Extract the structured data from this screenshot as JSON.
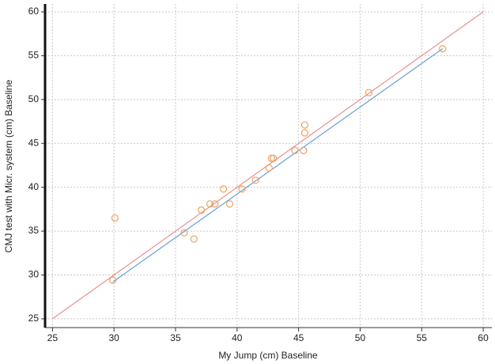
{
  "chart_data": {
    "type": "scatter",
    "xlabel": "My Jump (cm) Baseline",
    "ylabel": "CMJ test with Micr. system (cm) Baseline",
    "xlim": [
      24.4,
      60.7
    ],
    "ylim": [
      24,
      60.9
    ],
    "xticks": [
      25,
      30,
      35,
      40,
      45,
      50,
      55,
      60
    ],
    "yticks": [
      25,
      30,
      35,
      40,
      45,
      50,
      55,
      60
    ],
    "grid": true,
    "marker_color": "#f0a060",
    "x": [
      30.08,
      29.9,
      35.7,
      36.5,
      37.1,
      37.8,
      38.2,
      38.9,
      39.4,
      40.4,
      41.5,
      42.6,
      42.8,
      42.95,
      44.7,
      45.4,
      45.5,
      45.5,
      50.7,
      56.7
    ],
    "y": [
      36.5,
      29.4,
      34.8,
      34.1,
      37.4,
      38.1,
      38.1,
      39.8,
      38.1,
      39.8,
      40.8,
      42.2,
      43.3,
      43.3,
      44.2,
      44.2,
      47.1,
      46.2,
      50.8,
      55.8
    ],
    "lines": [
      {
        "color": "#e89090",
        "x": [
          25,
          60
        ],
        "y": [
          25,
          60
        ]
      },
      {
        "color": "#6a9fd8",
        "x": [
          29.9,
          56.7
        ],
        "y": [
          29.2,
          55.8
        ]
      }
    ]
  }
}
